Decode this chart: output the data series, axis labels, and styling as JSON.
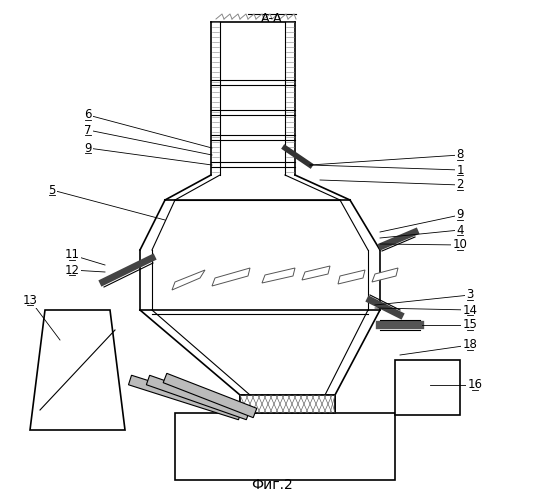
{
  "title": "А-А",
  "caption": "Фиг.2",
  "bg_color": "#ffffff",
  "line_color": "#000000"
}
